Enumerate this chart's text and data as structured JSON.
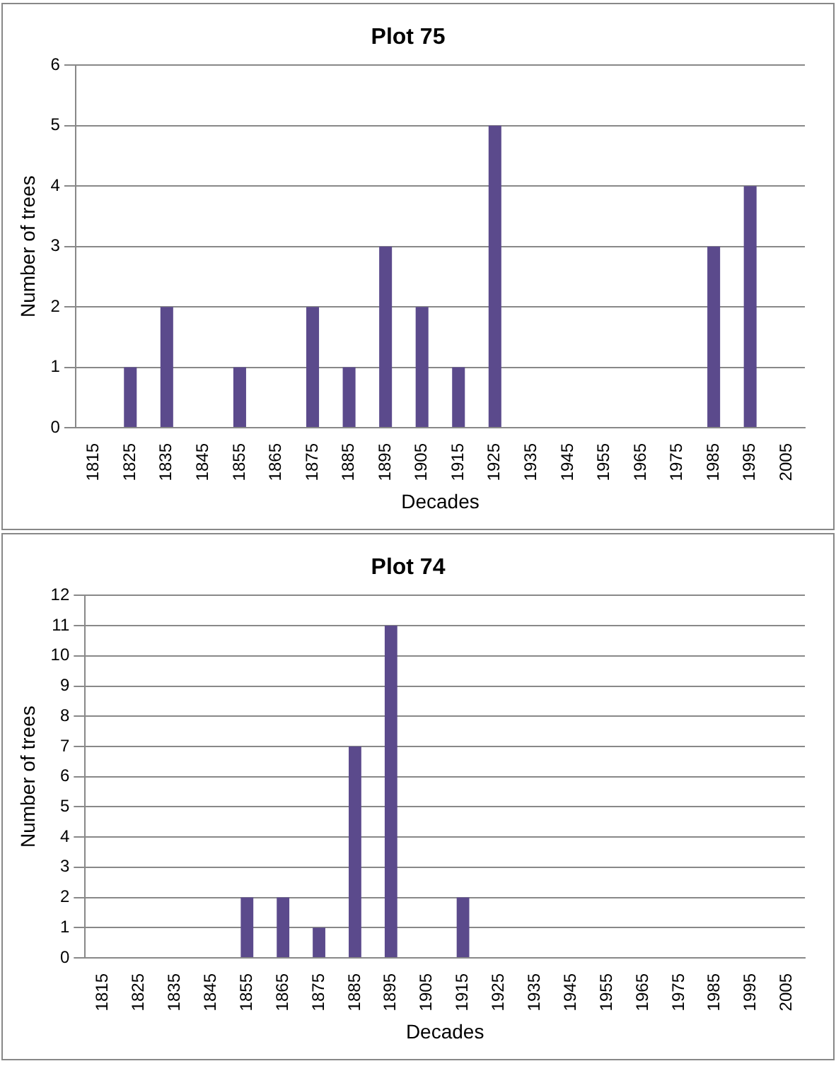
{
  "chart_data": [
    {
      "type": "bar",
      "title": "Plot 75",
      "xlabel": "Decades",
      "ylabel": "Number of trees",
      "categories": [
        "1815",
        "1825",
        "1835",
        "1845",
        "1855",
        "1865",
        "1875",
        "1885",
        "1895",
        "1905",
        "1915",
        "1925",
        "1935",
        "1945",
        "1955",
        "1965",
        "1975",
        "1985",
        "1995",
        "2005"
      ],
      "values": [
        0,
        1,
        2,
        0,
        1,
        0,
        2,
        1,
        3,
        2,
        1,
        5,
        0,
        0,
        0,
        0,
        0,
        3,
        4,
        0
      ],
      "color": "#5b4a8c",
      "ylim": [
        0,
        6
      ],
      "yticks": [
        0,
        1,
        2,
        3,
        4,
        5,
        6
      ],
      "grid": "y",
      "legend": false
    },
    {
      "type": "bar",
      "title": "Plot 74",
      "xlabel": "Decades",
      "ylabel": "Number of trees",
      "categories": [
        "1815",
        "1825",
        "1835",
        "1845",
        "1855",
        "1865",
        "1875",
        "1885",
        "1895",
        "1905",
        "1915",
        "1925",
        "1935",
        "1945",
        "1955",
        "1965",
        "1975",
        "1985",
        "1995",
        "2005"
      ],
      "values": [
        0,
        0,
        0,
        0,
        2,
        2,
        1,
        7,
        11,
        0,
        2,
        0,
        0,
        0,
        0,
        0,
        0,
        0,
        0,
        0
      ],
      "color": "#5b4a8c",
      "ylim": [
        0,
        12
      ],
      "yticks": [
        0,
        1,
        2,
        3,
        4,
        5,
        6,
        7,
        8,
        9,
        10,
        11,
        12
      ],
      "grid": "y",
      "legend": false
    }
  ]
}
